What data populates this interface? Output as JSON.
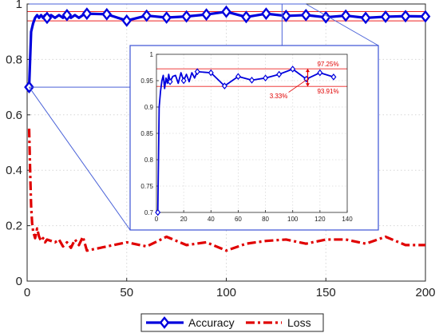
{
  "chart_data": [
    {
      "id": "main",
      "type": "line",
      "xlim": [
        0,
        200
      ],
      "ylim": [
        0,
        1
      ],
      "xticks": [
        0,
        50,
        100,
        150,
        200
      ],
      "yticks": [
        0,
        0.2,
        0.4,
        0.6,
        0.8,
        1
      ],
      "xtick_labels": [
        "0",
        "50",
        "100",
        "150",
        "200"
      ],
      "ytick_labels": [
        "0",
        "0.2",
        "0.4",
        "0.6",
        "0.8",
        "1"
      ],
      "grid": true,
      "reference_lines": [
        0.9725,
        0.9391
      ],
      "series": [
        {
          "name": "Accuracy",
          "color": "#0000dd",
          "style": "solid-diamond",
          "x": [
            1,
            2,
            3,
            4,
            5,
            6,
            7,
            8,
            9,
            10,
            12,
            14,
            16,
            18,
            20,
            22,
            24,
            26,
            28,
            30,
            40,
            50,
            60,
            70,
            80,
            90,
            100,
            110,
            120,
            130,
            140,
            150,
            160,
            170,
            180,
            190,
            200
          ],
          "y": [
            0.7,
            0.9,
            0.93,
            0.95,
            0.96,
            0.95,
            0.96,
            0.95,
            0.96,
            0.95,
            0.96,
            0.95,
            0.96,
            0.95,
            0.96,
            0.95,
            0.96,
            0.95,
            0.96,
            0.965,
            0.963,
            0.94,
            0.958,
            0.951,
            0.955,
            0.962,
            0.972,
            0.953,
            0.965,
            0.957,
            0.96,
            0.952,
            0.958,
            0.95,
            0.954,
            0.956,
            0.955
          ],
          "markers_at": [
            1,
            10,
            20,
            30,
            40,
            50,
            60,
            70,
            80,
            90,
            100,
            110,
            120,
            130,
            140,
            150,
            160,
            170,
            180,
            190,
            200
          ]
        },
        {
          "name": "Loss",
          "color": "#e00000",
          "style": "dash-dot",
          "x": [
            1,
            1.5,
            2,
            2.5,
            3,
            4,
            5,
            6,
            7,
            8,
            9,
            10,
            12,
            14,
            16,
            18,
            20,
            22,
            24,
            26,
            28,
            30,
            40,
            50,
            60,
            70,
            80,
            90,
            100,
            110,
            120,
            130,
            140,
            150,
            160,
            170,
            180,
            190,
            200
          ],
          "y": [
            0.55,
            0.4,
            0.27,
            0.21,
            0.18,
            0.155,
            0.19,
            0.16,
            0.145,
            0.155,
            0.14,
            0.15,
            0.145,
            0.14,
            0.15,
            0.125,
            0.14,
            0.12,
            0.15,
            0.13,
            0.16,
            0.11,
            0.125,
            0.14,
            0.125,
            0.16,
            0.13,
            0.14,
            0.11,
            0.135,
            0.145,
            0.15,
            0.135,
            0.15,
            0.15,
            0.135,
            0.16,
            0.13,
            0.13
          ]
        }
      ],
      "legend": {
        "placement": "bottom-center",
        "entries": [
          {
            "label": "Accuracy",
            "color": "#0000dd",
            "style": "solid-diamond"
          },
          {
            "label": "Loss",
            "color": "#e00000",
            "style": "dash-dot"
          }
        ]
      }
    },
    {
      "id": "inset",
      "type": "line",
      "xlim": [
        0,
        140
      ],
      "ylim": [
        0.7,
        1
      ],
      "xticks": [
        0,
        20,
        40,
        60,
        80,
        100,
        120,
        140
      ],
      "yticks": [
        0.7,
        0.75,
        0.8,
        0.85,
        0.9,
        0.95,
        1
      ],
      "xtick_labels": [
        "0",
        "20",
        "40",
        "60",
        "80",
        "100",
        "120",
        "140"
      ],
      "ytick_labels": [
        "0.7",
        "0.75",
        "0.8",
        "0.85",
        "0.9",
        "0.95",
        "1"
      ],
      "grid": true,
      "reference_lines": [
        0.9725,
        0.9391
      ],
      "series": [
        {
          "name": "Accuracy",
          "color": "#0000dd",
          "x": [
            1,
            2,
            3,
            4,
            5,
            6,
            7,
            8,
            9,
            10,
            12,
            14,
            16,
            18,
            20,
            22,
            24,
            26,
            28,
            30,
            40,
            50,
            60,
            70,
            80,
            90,
            100,
            110,
            120,
            130
          ],
          "y": [
            0.7,
            0.9,
            0.93,
            0.95,
            0.96,
            0.935,
            0.955,
            0.945,
            0.962,
            0.948,
            0.958,
            0.96,
            0.945,
            0.965,
            0.95,
            0.962,
            0.948,
            0.965,
            0.955,
            0.967,
            0.965,
            0.94,
            0.958,
            0.951,
            0.955,
            0.962,
            0.972,
            0.953,
            0.965,
            0.957
          ],
          "markers_at": [
            1,
            10,
            20,
            30,
            40,
            50,
            60,
            70,
            80,
            90,
            100,
            110,
            120,
            130
          ]
        }
      ],
      "annotations": [
        {
          "text": "97.25%",
          "x": 120,
          "y": 0.9725,
          "color": "#e00000"
        },
        {
          "text": "93.91%",
          "x": 120,
          "y": 0.9391,
          "color": "#e00000"
        },
        {
          "text": "3.33%",
          "x": 95,
          "y": 0.9391,
          "color": "#e00000"
        }
      ]
    }
  ]
}
